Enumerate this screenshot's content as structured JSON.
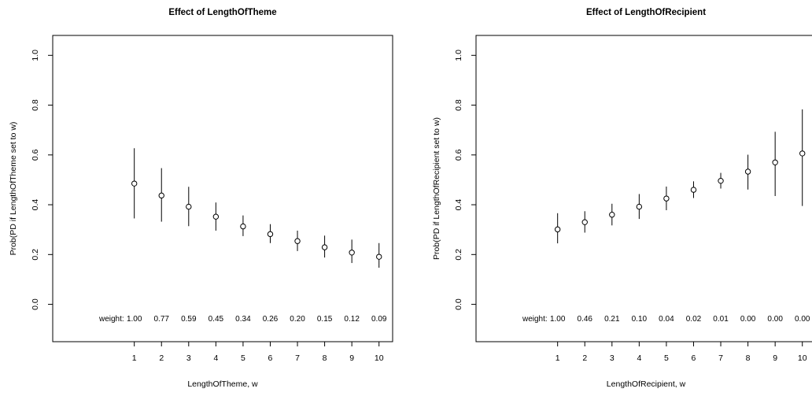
{
  "chart_data": [
    {
      "type": "scatter",
      "title": "Effect of LengthOfTheme",
      "xlabel": "LengthOfTheme, w",
      "ylabel": "Prob(PD if LengthOfTheme set to w)",
      "x": [
        1,
        2,
        3,
        4,
        5,
        6,
        7,
        8,
        9,
        10
      ],
      "y": [
        0.485,
        0.437,
        0.392,
        0.352,
        0.313,
        0.282,
        0.254,
        0.229,
        0.208,
        0.191
      ],
      "lower": [
        0.345,
        0.332,
        0.314,
        0.296,
        0.274,
        0.246,
        0.214,
        0.188,
        0.166,
        0.147
      ],
      "upper": [
        0.627,
        0.547,
        0.472,
        0.409,
        0.357,
        0.322,
        0.296,
        0.276,
        0.26,
        0.246
      ],
      "xlim": [
        -2.0,
        10.5
      ],
      "ylim": [
        -0.15,
        1.08
      ],
      "xticks": [
        "1",
        "2",
        "3",
        "4",
        "5",
        "6",
        "7",
        "8",
        "9",
        "10"
      ],
      "yticks": [
        "0.0",
        "0.2",
        "0.4",
        "0.6",
        "0.8",
        "1.0"
      ],
      "weight_label": "weight:",
      "weights": [
        "1.00",
        "0.77",
        "0.59",
        "0.45",
        "0.34",
        "0.26",
        "0.20",
        "0.15",
        "0.12",
        "0.09"
      ],
      "grid": false
    },
    {
      "type": "scatter",
      "title": "Effect of LengthOfRecipient",
      "xlabel": "LengthOfRecipient, w",
      "ylabel": "Prob(PD if LengthOfRecipient set to w)",
      "x": [
        1,
        2,
        3,
        4,
        5,
        6,
        7,
        8,
        9,
        10
      ],
      "y": [
        0.301,
        0.33,
        0.36,
        0.392,
        0.425,
        0.46,
        0.496,
        0.533,
        0.57,
        0.606
      ],
      "lower": [
        0.245,
        0.288,
        0.317,
        0.343,
        0.378,
        0.427,
        0.465,
        0.461,
        0.435,
        0.395
      ],
      "upper": [
        0.366,
        0.374,
        0.404,
        0.443,
        0.473,
        0.494,
        0.528,
        0.601,
        0.693,
        0.783
      ],
      "xlim": [
        -2.0,
        10.5
      ],
      "ylim": [
        -0.15,
        1.08
      ],
      "xticks": [
        "1",
        "2",
        "3",
        "4",
        "5",
        "6",
        "7",
        "8",
        "9",
        "10"
      ],
      "yticks": [
        "0.0",
        "0.2",
        "0.4",
        "0.6",
        "0.8",
        "1.0"
      ],
      "weight_label": "weight:",
      "weights": [
        "1.00",
        "0.46",
        "0.21",
        "0.10",
        "0.04",
        "0.02",
        "0.01",
        "0.00",
        "0.00",
        "0.00"
      ],
      "grid": false
    }
  ]
}
